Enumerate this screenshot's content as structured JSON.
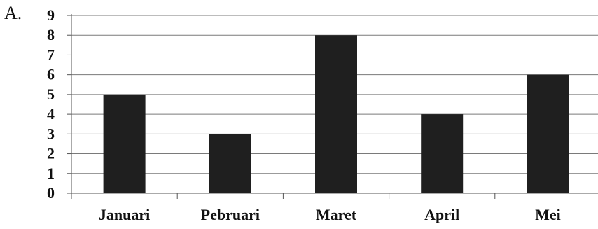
{
  "option_label": "A.",
  "chart_data": {
    "type": "bar",
    "title": "",
    "xlabel": "",
    "ylabel": "",
    "categories": [
      "Januari",
      "Pebruari",
      "Maret",
      "April",
      "Mei"
    ],
    "values": [
      5,
      3,
      8,
      4,
      6
    ],
    "ylim": [
      0,
      9
    ],
    "yticks": [
      0,
      1,
      2,
      3,
      4,
      5,
      6,
      7,
      8,
      9
    ],
    "grid": true,
    "legend": "none",
    "colors": {
      "bar": "#1f1f1f",
      "grid": "#7a7a7a",
      "axis": "#555555",
      "text": "#111111"
    }
  }
}
